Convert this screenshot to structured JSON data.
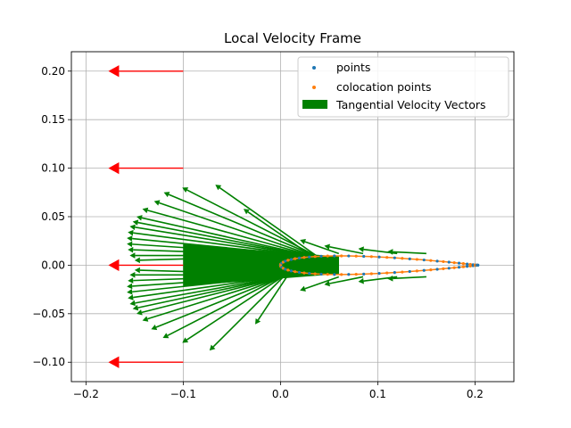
{
  "chart_data": {
    "type": "scatter",
    "title": "Local Velocity Frame",
    "xlabel": "",
    "ylabel": "",
    "xlim": [
      -0.215,
      0.24
    ],
    "ylim": [
      -0.12,
      0.22
    ],
    "xticks": [
      -0.2,
      -0.1,
      0.0,
      0.1,
      0.2
    ],
    "xtick_labels": [
      "−0.2",
      "−0.1",
      "0.0",
      "0.1",
      "0.2"
    ],
    "yticks": [
      -0.1,
      -0.05,
      0.0,
      0.05,
      0.1,
      0.15,
      0.2
    ],
    "ytick_labels": [
      "−0.10",
      "−0.05",
      "0.00",
      "0.05",
      "0.10",
      "0.15",
      "0.20"
    ],
    "grid": true,
    "legend_position": "top-right",
    "colors": {
      "points": "#1f77b4",
      "colocation": "#ff7f0e",
      "tangential": "#008000",
      "freestream": "#ff0000",
      "grid": "#b0b0b0"
    },
    "legend": [
      "points",
      "colocation points",
      "Tangential Velocity Vectors"
    ],
    "airfoil": {
      "leading_edge_x": 0.0,
      "trailing_edge_x": 0.203,
      "half_thickness": 0.0115,
      "n_points": 40
    },
    "freestream_arrows": [
      {
        "x": -0.1,
        "y": 0.2,
        "u": -0.077,
        "v": 0.0
      },
      {
        "x": -0.1,
        "y": 0.1,
        "u": -0.077,
        "v": 0.0
      },
      {
        "x": -0.1,
        "y": 0.0,
        "u": -0.077,
        "v": 0.0
      },
      {
        "x": -0.1,
        "y": -0.1,
        "u": -0.077,
        "v": 0.0
      }
    ],
    "tangential_tips": [
      [
        -0.101,
        0.08
      ],
      [
        -0.067,
        0.083
      ],
      [
        -0.038,
        0.058
      ],
      [
        -0.12,
        0.075
      ],
      [
        -0.13,
        0.066
      ],
      [
        -0.142,
        0.058
      ],
      [
        -0.148,
        0.05
      ],
      [
        -0.152,
        0.045
      ],
      [
        -0.155,
        0.04
      ],
      [
        -0.157,
        0.034
      ],
      [
        -0.158,
        0.028
      ],
      [
        -0.158,
        0.022
      ],
      [
        -0.157,
        0.016
      ],
      [
        -0.155,
        0.01
      ],
      [
        -0.15,
        0.005
      ],
      [
        -0.101,
        -0.08
      ],
      [
        -0.073,
        -0.088
      ],
      [
        -0.026,
        -0.061
      ],
      [
        -0.121,
        -0.075
      ],
      [
        -0.133,
        -0.066
      ],
      [
        -0.142,
        -0.057
      ],
      [
        -0.148,
        -0.05
      ],
      [
        -0.152,
        -0.045
      ],
      [
        -0.155,
        -0.04
      ],
      [
        -0.157,
        -0.034
      ],
      [
        -0.158,
        -0.028
      ],
      [
        -0.158,
        -0.022
      ],
      [
        -0.157,
        -0.016
      ],
      [
        -0.155,
        -0.01
      ],
      [
        -0.15,
        -0.005
      ],
      [
        0.02,
        0.026
      ],
      [
        0.045,
        0.02
      ],
      [
        0.08,
        0.017
      ],
      [
        0.11,
        0.014
      ],
      [
        0.02,
        -0.026
      ],
      [
        0.045,
        -0.02
      ],
      [
        0.08,
        -0.017
      ],
      [
        0.11,
        -0.014
      ]
    ]
  }
}
